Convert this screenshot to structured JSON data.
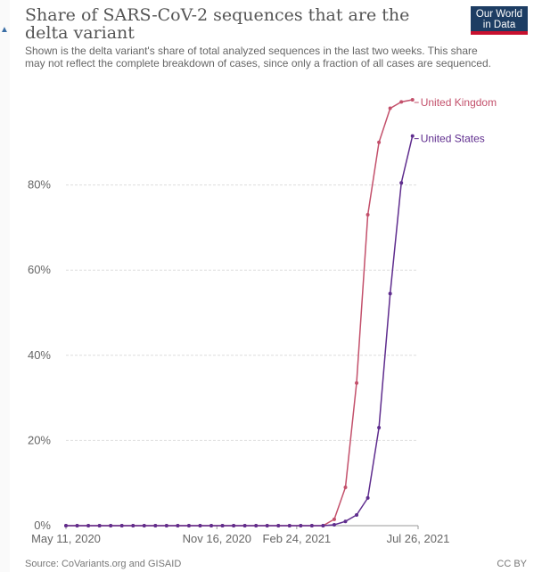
{
  "header": {
    "title": "Share of SARS-CoV-2 sequences that are the delta variant",
    "subtitle": "Shown is the delta variant's share of total analyzed sequences in the last two weeks. This share may not reflect the complete breakdown of cases, since only a fraction of all cases are sequenced.",
    "logo_line1": "Our World",
    "logo_line2": "in Data"
  },
  "footer": {
    "source": "Source: CoVariants.org and GISAID",
    "license": "CC BY"
  },
  "colors": {
    "united_kingdom": "#c3506b",
    "united_states": "#5f2d8e",
    "gridline": "#dddddd",
    "axis": "#999999",
    "logo_bg": "#1d3d63",
    "logo_accent": "#c8102e"
  },
  "chart_data": {
    "type": "line",
    "title": "Share of SARS-CoV-2 sequences that are the delta variant",
    "xlabel": "",
    "ylabel": "",
    "ylim": [
      0,
      100
    ],
    "grid": true,
    "y_ticks": [
      0,
      20,
      40,
      60,
      80
    ],
    "y_tick_labels": [
      "0%",
      "20%",
      "40%",
      "60%",
      "80%"
    ],
    "x_ticks": [
      "2020-05-11",
      "2020-11-16",
      "2021-02-24",
      "2021-07-26"
    ],
    "x_tick_labels": [
      "May 11, 2020",
      "Nov 16, 2020",
      "Feb 24, 2021",
      "Jul 26, 2021"
    ],
    "x_range": [
      "2020-05-11",
      "2021-07-26"
    ],
    "series": [
      {
        "name": "United Kingdom",
        "points": [
          [
            "2020-05-11",
            0
          ],
          [
            "2020-05-25",
            0
          ],
          [
            "2020-06-08",
            0
          ],
          [
            "2020-06-22",
            0
          ],
          [
            "2020-07-06",
            0
          ],
          [
            "2020-07-20",
            0
          ],
          [
            "2020-08-03",
            0
          ],
          [
            "2020-08-17",
            0
          ],
          [
            "2020-08-31",
            0
          ],
          [
            "2020-09-14",
            0
          ],
          [
            "2020-09-28",
            0
          ],
          [
            "2020-10-12",
            0
          ],
          [
            "2020-10-26",
            0
          ],
          [
            "2020-11-09",
            0
          ],
          [
            "2020-11-23",
            0
          ],
          [
            "2020-12-07",
            0
          ],
          [
            "2020-12-21",
            0
          ],
          [
            "2021-01-04",
            0
          ],
          [
            "2021-01-18",
            0
          ],
          [
            "2021-02-01",
            0
          ],
          [
            "2021-02-15",
            0
          ],
          [
            "2021-03-01",
            0
          ],
          [
            "2021-03-15",
            0
          ],
          [
            "2021-03-29",
            0
          ],
          [
            "2021-04-12",
            1.5
          ],
          [
            "2021-04-26",
            9
          ],
          [
            "2021-05-10",
            33.5
          ],
          [
            "2021-05-24",
            73
          ],
          [
            "2021-06-07",
            90
          ],
          [
            "2021-06-21",
            98
          ],
          [
            "2021-07-05",
            99.5
          ],
          [
            "2021-07-19",
            100
          ]
        ]
      },
      {
        "name": "United States",
        "points": [
          [
            "2020-05-11",
            0
          ],
          [
            "2020-05-25",
            0
          ],
          [
            "2020-06-08",
            0
          ],
          [
            "2020-06-22",
            0
          ],
          [
            "2020-07-06",
            0
          ],
          [
            "2020-07-20",
            0
          ],
          [
            "2020-08-03",
            0
          ],
          [
            "2020-08-17",
            0
          ],
          [
            "2020-08-31",
            0
          ],
          [
            "2020-09-14",
            0
          ],
          [
            "2020-09-28",
            0
          ],
          [
            "2020-10-12",
            0
          ],
          [
            "2020-10-26",
            0
          ],
          [
            "2020-11-09",
            0
          ],
          [
            "2020-11-23",
            0
          ],
          [
            "2020-12-07",
            0
          ],
          [
            "2020-12-21",
            0
          ],
          [
            "2021-01-04",
            0
          ],
          [
            "2021-01-18",
            0
          ],
          [
            "2021-02-01",
            0
          ],
          [
            "2021-02-15",
            0
          ],
          [
            "2021-03-01",
            0
          ],
          [
            "2021-03-15",
            0
          ],
          [
            "2021-03-29",
            0
          ],
          [
            "2021-04-12",
            0.2
          ],
          [
            "2021-04-26",
            1
          ],
          [
            "2021-05-10",
            2.5
          ],
          [
            "2021-05-24",
            6.5
          ],
          [
            "2021-06-07",
            23
          ],
          [
            "2021-06-21",
            54.5
          ],
          [
            "2021-07-05",
            80.5
          ],
          [
            "2021-07-19",
            91.5
          ]
        ]
      }
    ]
  }
}
